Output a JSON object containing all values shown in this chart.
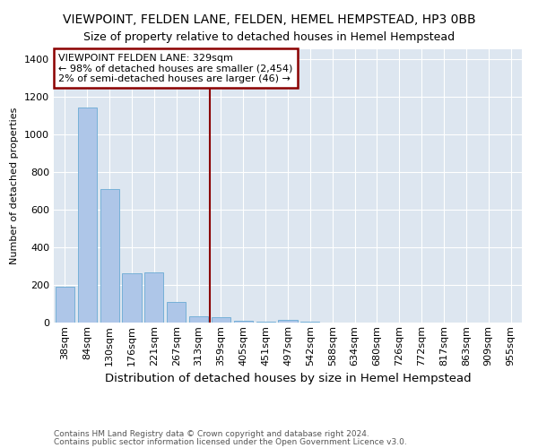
{
  "title": "VIEWPOINT, FELDEN LANE, FELDEN, HEMEL HEMPSTEAD, HP3 0BB",
  "subtitle": "Size of property relative to detached houses in Hemel Hempstead",
  "xlabel": "Distribution of detached houses by size in Hemel Hempstead",
  "ylabel": "Number of detached properties",
  "footnote1": "Contains HM Land Registry data © Crown copyright and database right 2024.",
  "footnote2": "Contains public sector information licensed under the Open Government Licence v3.0.",
  "categories": [
    "38sqm",
    "84sqm",
    "130sqm",
    "176sqm",
    "221sqm",
    "267sqm",
    "313sqm",
    "359sqm",
    "405sqm",
    "451sqm",
    "497sqm",
    "542sqm",
    "588sqm",
    "634sqm",
    "680sqm",
    "726sqm",
    "772sqm",
    "817sqm",
    "863sqm",
    "909sqm",
    "955sqm"
  ],
  "values": [
    190,
    1140,
    710,
    260,
    265,
    110,
    35,
    28,
    8,
    5,
    14,
    5,
    0,
    0,
    0,
    0,
    0,
    0,
    0,
    0,
    0
  ],
  "bar_color": "#aec6e8",
  "bar_edge_color": "#6aaad4",
  "bg_color": "#dde6f0",
  "vline_color": "#8b0000",
  "annotation_box_color": "#8b0000",
  "annotation_line1": "VIEWPOINT FELDEN LANE: 329sqm",
  "annotation_line2": "← 98% of detached houses are smaller (2,454)",
  "annotation_line3": "2% of semi-detached houses are larger (46) →",
  "ylim": [
    0,
    1450
  ],
  "yticks": [
    0,
    200,
    400,
    600,
    800,
    1000,
    1200,
    1400
  ],
  "title_fontsize": 10,
  "subtitle_fontsize": 9,
  "ylabel_fontsize": 8,
  "xlabel_fontsize": 9.5,
  "tick_fontsize": 8,
  "annot_fontsize": 8,
  "footnote_fontsize": 6.5
}
